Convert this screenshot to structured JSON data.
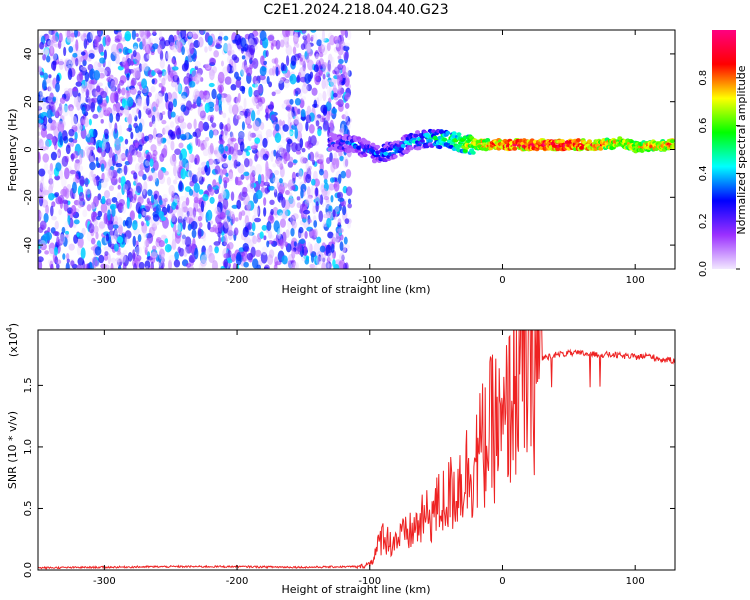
{
  "title": "C2E1.2024.218.04.40.G23",
  "chart_data": [
    {
      "type": "heatmap",
      "xlabel": "Height of straight line (km)",
      "ylabel": "Frequency (Hz)",
      "xlim": [
        -350,
        130
      ],
      "ylim": [
        -50,
        50
      ],
      "xticks": [
        -300,
        -200,
        -100,
        0,
        100
      ],
      "yticks": [
        -40,
        -20,
        0,
        20,
        40
      ],
      "colorbar": {
        "label": "Normalized spectral amplitude",
        "range": [
          0,
          1
        ],
        "ticks": [
          "0.0",
          "0.2",
          "0.4",
          "0.6",
          "0.8"
        ],
        "colors": [
          "#f2e8ff",
          "#9b30ff",
          "#0000ff",
          "#00ffff",
          "#00ff00",
          "#ffff00",
          "#ff0000",
          "#ff0080"
        ]
      },
      "noise_region": {
        "x_range": [
          -350,
          -115
        ],
        "freq_range": [
          -50,
          50
        ],
        "typical_amplitude": 0.15
      },
      "signal_track": [
        {
          "x": -130,
          "f": 3
        },
        {
          "x": -110,
          "f": 2
        },
        {
          "x": -95,
          "f": -2
        },
        {
          "x": -80,
          "f": 0
        },
        {
          "x": -70,
          "f": 3
        },
        {
          "x": -55,
          "f": 5
        },
        {
          "x": -40,
          "f": 4
        },
        {
          "x": -25,
          "f": 2
        },
        {
          "x": 0,
          "f": 2
        },
        {
          "x": 25,
          "f": 2
        },
        {
          "x": 50,
          "f": 2
        },
        {
          "x": 75,
          "f": 2
        },
        {
          "x": 90,
          "f": 3
        },
        {
          "x": 100,
          "f": 1
        },
        {
          "x": 130,
          "f": 2
        }
      ],
      "signal_amplitude": [
        {
          "x": -130,
          "a": 0.25
        },
        {
          "x": -100,
          "a": 0.35
        },
        {
          "x": -60,
          "a": 0.4
        },
        {
          "x": -20,
          "a": 0.75
        },
        {
          "x": 0,
          "a": 0.85
        },
        {
          "x": 50,
          "a": 0.9
        },
        {
          "x": 90,
          "a": 0.7
        },
        {
          "x": 130,
          "a": 0.8
        }
      ]
    },
    {
      "type": "line",
      "xlabel": "Height of straight line (km)",
      "ylabel": "SNR (10 * v/v)",
      "y_multiplier": "(x10",
      "y_multiplier_exp": "4",
      "y_multiplier_close": ")",
      "xlim": [
        -350,
        130
      ],
      "ylim": [
        0,
        1.95
      ],
      "xticks": [
        -300,
        -200,
        -100,
        0,
        100
      ],
      "yticks": [
        "0.0",
        "0.5",
        "1.0",
        "1.5"
      ],
      "color": "#ee2222",
      "series": [
        {
          "x": [
            -350,
            -300,
            -250,
            -200,
            -150,
            -110,
            -100,
            -95,
            -90,
            -85,
            -80,
            -70,
            -60,
            -50,
            -40,
            -30,
            -20,
            -10,
            -5,
            0,
            5,
            10,
            20,
            30,
            40,
            50,
            60,
            70,
            80,
            90,
            100,
            110,
            120,
            130
          ],
          "values": [
            0.01,
            0.015,
            0.02,
            0.02,
            0.015,
            0.02,
            0.05,
            0.15,
            0.3,
            0.22,
            0.25,
            0.3,
            0.4,
            0.5,
            0.6,
            0.75,
            0.9,
            1.1,
            1.2,
            1.05,
            1.35,
            1.55,
            1.65,
            1.72,
            1.75,
            1.76,
            1.76,
            1.75,
            1.75,
            1.74,
            1.73,
            1.74,
            1.71,
            1.7
          ]
        }
      ]
    }
  ]
}
